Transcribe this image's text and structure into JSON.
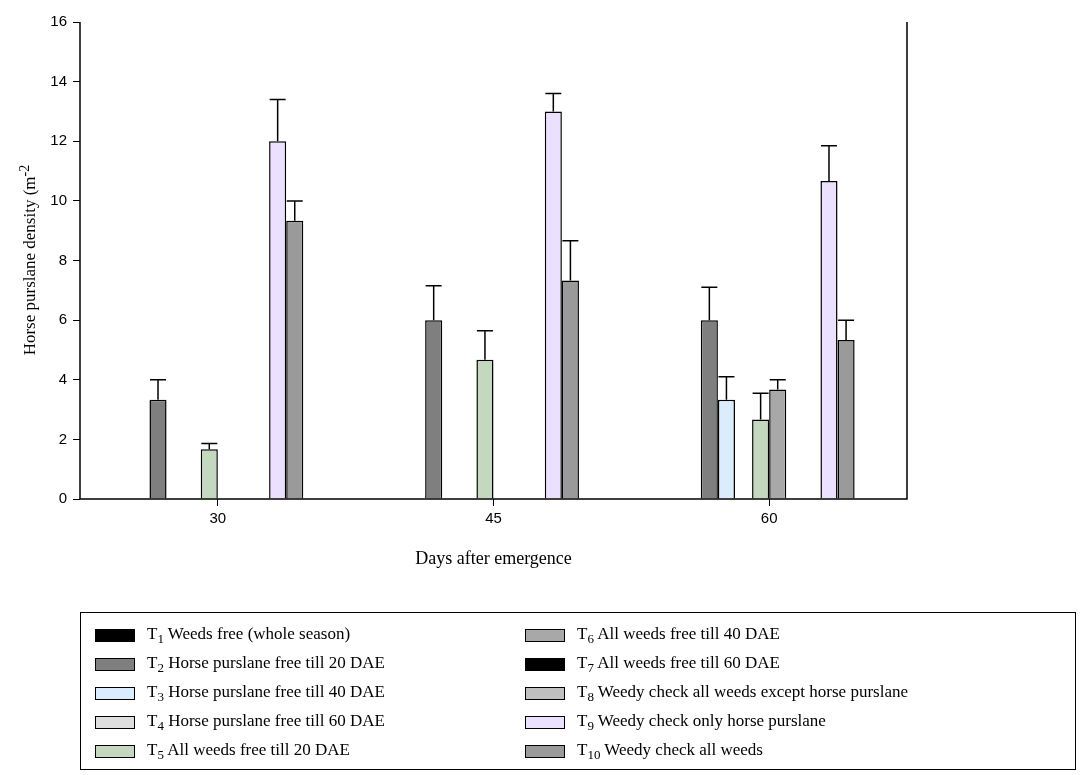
{
  "chart_data": {
    "type": "bar",
    "xlabel": "Days after emergence",
    "ylabel": "Horse purslane density (m$^{-2}$",
    "categories": [
      "30",
      "45",
      "60"
    ],
    "ylim": [
      0,
      16
    ],
    "yticks": [
      0,
      2,
      4,
      6,
      8,
      10,
      12,
      14,
      16
    ],
    "grid": false,
    "legend": "bottom",
    "series": [
      {
        "name": "T$_{1}$ Weeds free (whole season)",
        "color": "#000000",
        "values": [
          0,
          0,
          0
        ]
      },
      {
        "name": "T$_{2}$ Horse purslane free till 20 DAE",
        "color": "#7f7f7f",
        "values": [
          3.33,
          6.0,
          6.0
        ],
        "errors": [
          [
            3.33,
            4.0
          ],
          [
            6.0,
            7.15
          ],
          [
            6.0,
            7.1
          ]
        ]
      },
      {
        "name": "T$_{3}$ Horse purslane free till 40 DAE",
        "color": "#dcecff",
        "values": [
          0,
          0,
          3.33
        ],
        "errors": [
          null,
          null,
          [
            3.33,
            4.1
          ]
        ]
      },
      {
        "name": "T$_{4}$ Horse purslane free till 60 DAE",
        "color": "#dedede",
        "values": [
          0,
          0,
          0
        ]
      },
      {
        "name": "T$_{5}$ All weeds free till 20 DAE",
        "color": "#c4d8c0",
        "values": [
          1.67,
          4.67,
          2.67
        ],
        "errors": [
          [
            1.67,
            1.86
          ],
          [
            4.67,
            5.64
          ],
          [
            2.67,
            3.55
          ]
        ]
      },
      {
        "name": "T$_{6}$ All weeds free till 40 DAE",
        "color": "#a8a8a8",
        "values": [
          0,
          0,
          3.67
        ],
        "errors": [
          null,
          null,
          [
            3.67,
            4.0
          ]
        ]
      },
      {
        "name": "T$_{7}$ All weeds free till 60 DAE",
        "color": "#000000",
        "values": [
          0,
          0,
          0
        ]
      },
      {
        "name": "T$_{8}$ Weedy check all weeds except horse purslane",
        "color": "#c0c0c0",
        "values": [
          0,
          0,
          0
        ]
      },
      {
        "name": "T$_{9}$ Weedy check only horse purslane",
        "color": "#ece0ff",
        "values": [
          12.0,
          13.0,
          10.67
        ],
        "errors": [
          [
            12.0,
            13.4
          ],
          [
            13.0,
            13.6
          ],
          [
            10.67,
            11.85
          ]
        ]
      },
      {
        "name": "T$_{10}$ Weedy check all weeds",
        "color": "#9a9a9a",
        "values": [
          9.33,
          7.33,
          5.33
        ],
        "errors": [
          [
            9.33,
            10.0
          ],
          [
            7.33,
            8.66
          ],
          [
            5.33,
            6.0
          ]
        ]
      }
    ]
  }
}
